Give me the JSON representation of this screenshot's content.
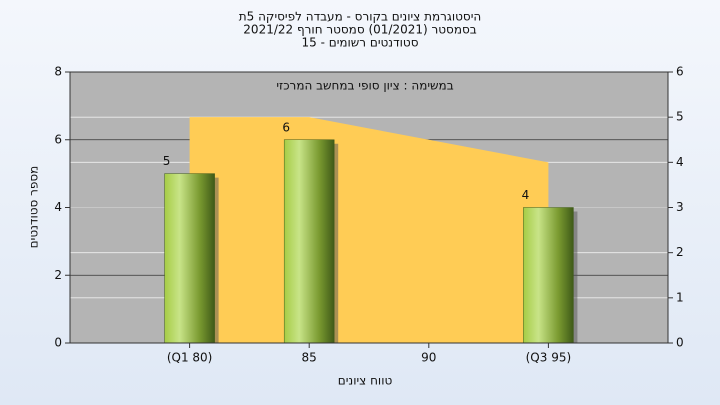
{
  "chart_data": {
    "type": "bar",
    "title": "היסטוגרמת ציונים בקורס - מעבדה לפיסיקה 5ת",
    "subtitle": "בסמסטר  (01/2021)  סמסטר חורף 2021/22",
    "subtitle2": "סטודנטים רשומים - 15",
    "annotation": "במשימה : ציון סופי במחשב המרכזי",
    "x_label": "טווח ציונים",
    "y_label": "מספר סטודנטים",
    "categories": [
      "(Q1 80)",
      "85",
      "90",
      "(Q3 95)"
    ],
    "series": [
      {
        "type": "bar",
        "color": "#8fb83a",
        "values": [
          5,
          6,
          null,
          4
        ]
      },
      {
        "type": "area",
        "axis": "y2",
        "color": "#ffcc55",
        "values": [
          5,
          5,
          4.5,
          4
        ]
      }
    ],
    "ylim": [
      0,
      8
    ],
    "yticks": [
      0,
      2,
      4,
      6,
      8
    ],
    "y2lim": [
      0,
      6
    ],
    "y2ticks": [
      0,
      1,
      2,
      3,
      4,
      5,
      6
    ],
    "grid": true
  }
}
